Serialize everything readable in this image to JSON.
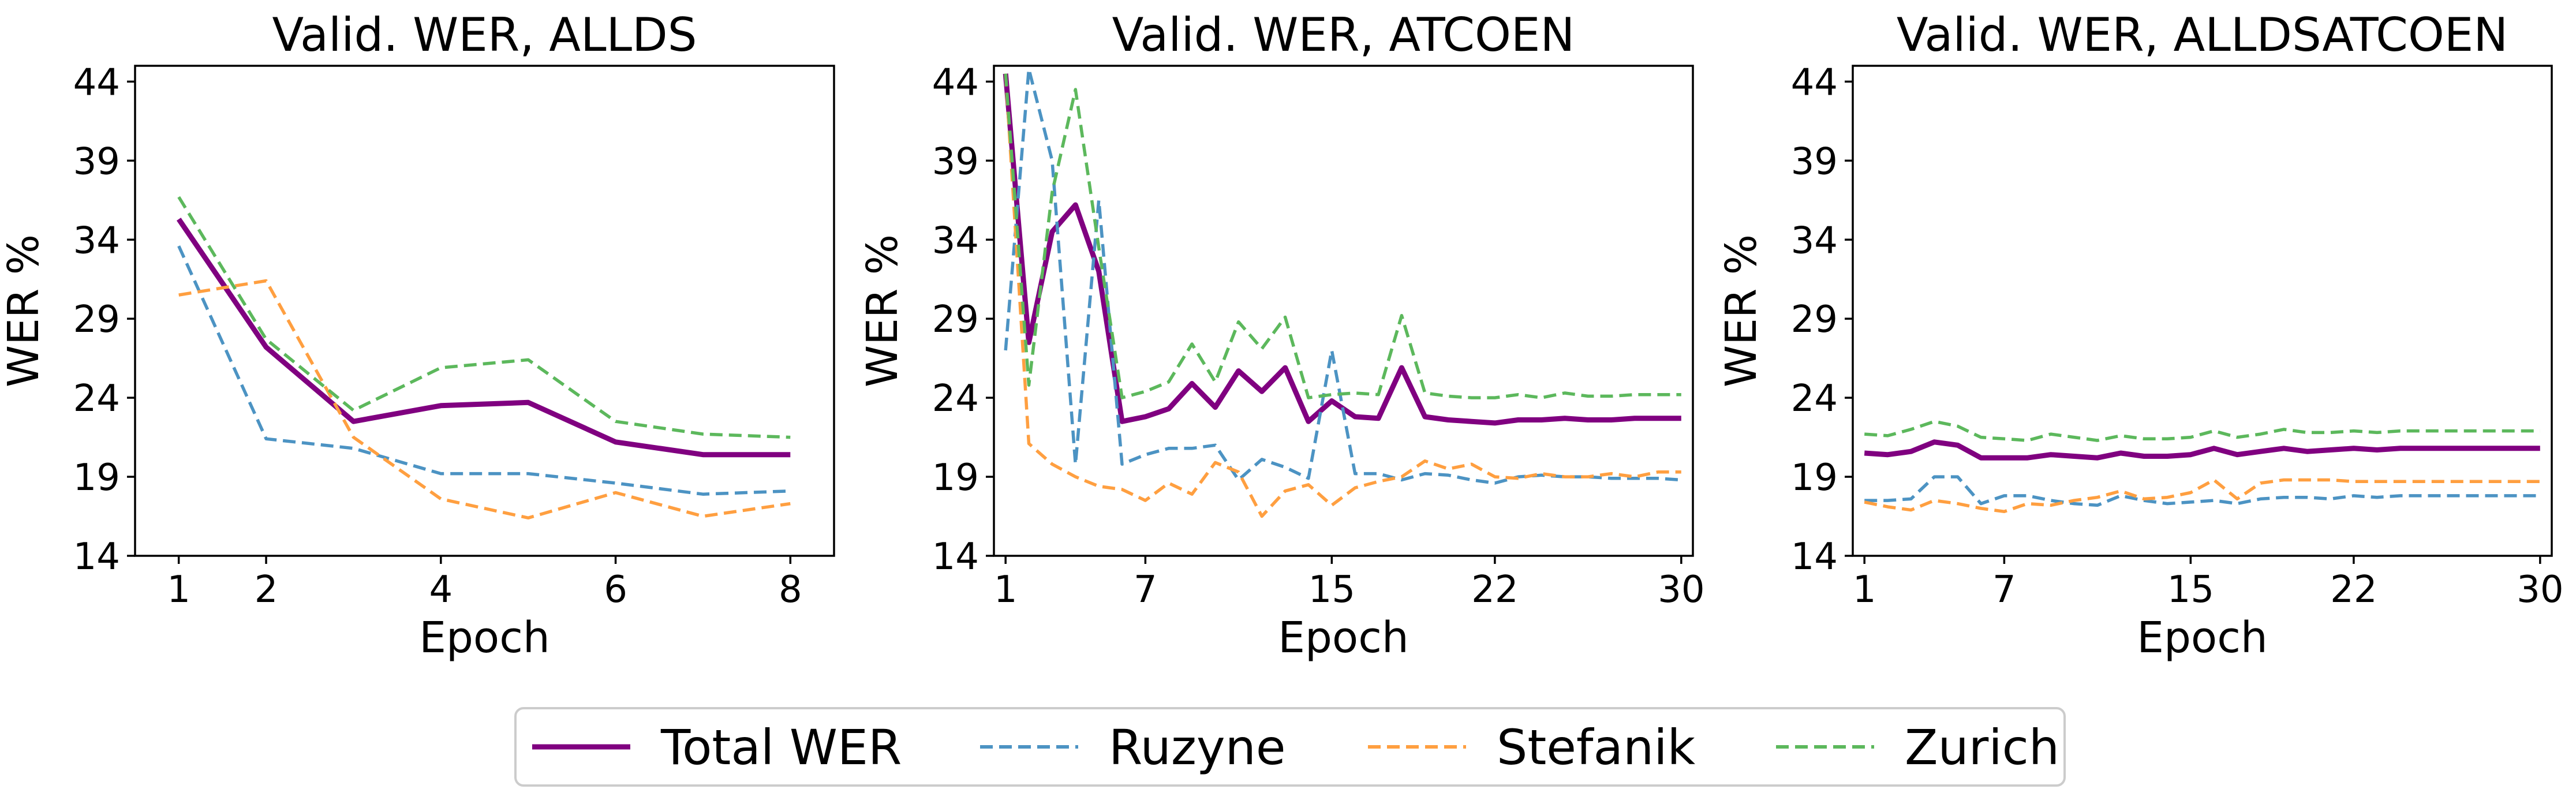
{
  "colors": {
    "total": "#800080",
    "ruzyne": "#4C93C3",
    "stefanik": "#FF9F40",
    "zurich": "#5CB85C"
  },
  "legend": [
    "Total WER",
    "Ruzyne",
    "Stefanik",
    "Zurich"
  ],
  "chart_data": [
    {
      "type": "line",
      "title": "Valid. WER, ALLDS",
      "xlabel": "Epoch",
      "ylabel": "WER %",
      "xlim": [
        0.5,
        8.5
      ],
      "ylim": [
        14,
        45
      ],
      "xticks": [
        1,
        2,
        4,
        6,
        8
      ],
      "yticks": [
        14,
        19,
        24,
        29,
        34,
        39,
        44
      ],
      "x": [
        1,
        2,
        3,
        4,
        5,
        6,
        7,
        8
      ],
      "series": [
        {
          "name": "Total WER",
          "values": [
            35.3,
            27.2,
            22.5,
            23.5,
            23.7,
            21.2,
            20.4,
            20.4
          ]
        },
        {
          "name": "Ruzyne",
          "values": [
            33.6,
            21.4,
            20.8,
            19.2,
            19.2,
            18.6,
            17.9,
            18.1
          ]
        },
        {
          "name": "Stefanik",
          "values": [
            30.5,
            31.4,
            21.5,
            17.6,
            16.4,
            18.0,
            16.5,
            17.3
          ]
        },
        {
          "name": "Zurich",
          "values": [
            36.7,
            27.7,
            23.2,
            25.9,
            26.4,
            22.5,
            21.7,
            21.5
          ]
        }
      ]
    },
    {
      "type": "line",
      "title": "Valid. WER, ATCOEN",
      "xlabel": "Epoch",
      "ylabel": "WER %",
      "xlim": [
        0.5,
        30.5
      ],
      "ylim": [
        14,
        45
      ],
      "xticks": [
        1,
        7,
        15,
        22,
        30
      ],
      "yticks": [
        14,
        19,
        24,
        29,
        34,
        39,
        44
      ],
      "x": [
        1,
        2,
        3,
        4,
        5,
        6,
        7,
        8,
        9,
        10,
        11,
        12,
        13,
        14,
        15,
        16,
        17,
        18,
        19,
        20,
        21,
        22,
        23,
        24,
        25,
        26,
        27,
        28,
        29,
        30
      ],
      "series": [
        {
          "name": "Total WER",
          "values": [
            44.5,
            27.5,
            34.5,
            36.2,
            32.0,
            22.5,
            22.8,
            23.3,
            24.9,
            23.4,
            25.7,
            24.4,
            25.9,
            22.5,
            23.8,
            22.8,
            22.7,
            25.9,
            22.8,
            22.6,
            22.5,
            22.4,
            22.6,
            22.6,
            22.7,
            22.6,
            22.6,
            22.7,
            22.7,
            22.7
          ]
        },
        {
          "name": "Ruzyne",
          "values": [
            27.0,
            44.8,
            39.0,
            19.8,
            36.5,
            19.8,
            20.4,
            20.8,
            20.8,
            21.0,
            18.8,
            20.1,
            19.6,
            18.9,
            27.0,
            19.2,
            19.2,
            18.8,
            19.2,
            19.1,
            18.8,
            18.6,
            19.0,
            19.1,
            19.0,
            19.0,
            18.9,
            18.9,
            18.9,
            18.8
          ]
        },
        {
          "name": "Stefanik",
          "values": [
            44.5,
            21.1,
            19.8,
            19.0,
            18.4,
            18.2,
            17.5,
            18.6,
            17.9,
            19.9,
            19.3,
            16.5,
            18.1,
            18.5,
            17.2,
            18.3,
            18.7,
            19.0,
            20.0,
            19.5,
            19.8,
            19.0,
            18.9,
            19.2,
            19.0,
            19.0,
            19.2,
            19.0,
            19.3,
            19.3
          ]
        },
        {
          "name": "Zurich",
          "values": [
            44.5,
            24.8,
            37.0,
            43.5,
            33.5,
            24.0,
            24.4,
            25.0,
            27.4,
            25.0,
            28.8,
            27.1,
            29.1,
            24.0,
            24.2,
            24.3,
            24.2,
            29.2,
            24.3,
            24.1,
            24.0,
            24.0,
            24.2,
            24.0,
            24.3,
            24.1,
            24.1,
            24.2,
            24.2,
            24.2
          ]
        }
      ]
    },
    {
      "type": "line",
      "title": "Valid. WER, ALLDSATCOEN",
      "xlabel": "Epoch",
      "ylabel": "WER %",
      "xlim": [
        0.5,
        30.5
      ],
      "ylim": [
        14,
        45
      ],
      "xticks": [
        1,
        7,
        15,
        22,
        30
      ],
      "yticks": [
        14,
        19,
        24,
        29,
        34,
        39,
        44
      ],
      "x": [
        1,
        2,
        3,
        4,
        5,
        6,
        7,
        8,
        9,
        10,
        11,
        12,
        13,
        14,
        15,
        16,
        17,
        18,
        19,
        20,
        21,
        22,
        23,
        24,
        25,
        26,
        27,
        28,
        29,
        30
      ],
      "series": [
        {
          "name": "Total WER",
          "values": [
            20.5,
            20.4,
            20.6,
            21.2,
            21.0,
            20.2,
            20.2,
            20.2,
            20.4,
            20.3,
            20.2,
            20.5,
            20.3,
            20.3,
            20.4,
            20.8,
            20.4,
            20.6,
            20.8,
            20.6,
            20.7,
            20.8,
            20.7,
            20.8,
            20.8,
            20.8,
            20.8,
            20.8,
            20.8,
            20.8
          ]
        },
        {
          "name": "Ruzyne",
          "values": [
            17.5,
            17.5,
            17.6,
            19.0,
            19.0,
            17.3,
            17.8,
            17.8,
            17.5,
            17.3,
            17.2,
            17.8,
            17.5,
            17.3,
            17.4,
            17.5,
            17.3,
            17.6,
            17.7,
            17.7,
            17.6,
            17.8,
            17.7,
            17.8,
            17.8,
            17.8,
            17.8,
            17.8,
            17.8,
            17.8
          ]
        },
        {
          "name": "Stefanik",
          "values": [
            17.4,
            17.1,
            16.9,
            17.5,
            17.3,
            17.0,
            16.8,
            17.3,
            17.2,
            17.5,
            17.7,
            18.1,
            17.6,
            17.7,
            18.0,
            18.8,
            17.6,
            18.6,
            18.8,
            18.8,
            18.8,
            18.7,
            18.7,
            18.7,
            18.7,
            18.7,
            18.7,
            18.7,
            18.7,
            18.7
          ]
        },
        {
          "name": "Zurich",
          "values": [
            21.7,
            21.6,
            22.0,
            22.5,
            22.2,
            21.5,
            21.4,
            21.3,
            21.7,
            21.5,
            21.3,
            21.6,
            21.4,
            21.4,
            21.5,
            21.9,
            21.5,
            21.7,
            22.0,
            21.8,
            21.8,
            21.9,
            21.8,
            21.9,
            21.9,
            21.9,
            21.9,
            21.9,
            21.9,
            21.9
          ]
        }
      ]
    }
  ]
}
